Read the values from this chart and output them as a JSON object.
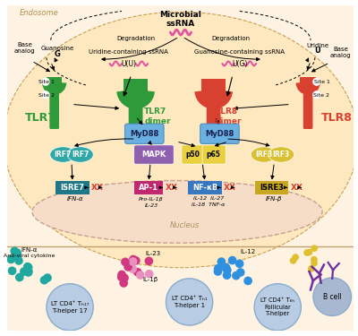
{
  "bg_outer": "#fef3e2",
  "bg_endosome": "#fde8c0",
  "bg_nucleus": "#f5ddc8",
  "colors": {
    "green": "#2e9a3a",
    "red": "#d84030",
    "pink_rna": "#e055a0",
    "teal_irf7": "#30a8a8",
    "purple_mapk": "#9060b0",
    "yellow_p50p65": "#e8d040",
    "yellow_irf3": "#d8c030",
    "blue_nfkb": "#3878c0",
    "pink_ap1": "#c02870",
    "teal_isre7": "#1e7888",
    "yellow_isre3": "#c8a820",
    "myd88": "#6ab0e0",
    "arrow": "#222222",
    "teal_dots": "#20a8a0",
    "pink_dots_dark": "#d03880",
    "pink_dots_light": "#e890c0",
    "blue_dots": "#3090e0",
    "yellow_dots": "#e0c030",
    "purple_ab": "#7030a0",
    "cell_fill": "#b8cce4",
    "cell_edge": "#8aabcc",
    "b_cell_fill": "#a8b8d0"
  },
  "texts": {
    "endosome": "Endosome",
    "microbial": "Microbial",
    "ssrna": "ssRNA",
    "degradation_left": "Degradation",
    "degradation_right": "Degradation",
    "guanosine": "Guanosine",
    "g": "G",
    "base_analog_l": "Base\nanalog",
    "uridine_ssrna": "Uridine-containing ssRNA",
    "uu": "U(U)",
    "guanosine_ssrna": "Guanosine-containing ssRNA",
    "ug": "U(G)",
    "uridine": "Uridine",
    "u": "U",
    "base_analog_r": "Base\nanalog",
    "site1_l": "Site 1",
    "site2_l": "Site 2",
    "site1_r": "Site 1",
    "site2_r": "Site 2",
    "tlr7": "TLR7",
    "tlr7_dimer": "TLR7\ndimer",
    "tlr8_dimer": "TLR8\ndimer",
    "tlr8": "TLR8",
    "myd88": "MyD88",
    "irf7": "IRF7",
    "irf7b": "IRF7",
    "mapk": "MAPK",
    "p50": "p50",
    "p65": "p65",
    "irf3a": "IRF3",
    "irf3b": "IRF3",
    "isre7": "ISRE7",
    "ap1": "AP-1",
    "nfkb": "NF-κB",
    "isre3": "ISRE3",
    "ifna_italic": "IFN-α",
    "proil1b": "Pro-IL-1β",
    "il23_italic": "IL-23",
    "il12": "IL-12",
    "il27": "IL-27",
    "il18": "IL-18",
    "tnfa": "TNF-α",
    "ifnb_italic": "IFN-β",
    "nucleus": "Nucleus",
    "ifna_label": "IFN-α",
    "antiviral": "Anti-viral cytokine",
    "il23_label": "IL-23",
    "il1b_label": "IL-1β",
    "il12_label": "IL-12",
    "th17_label": "LT CD4⁺ Tₕ₁₇\nT-helper 17",
    "th1_label": "LT CD4⁺ Tₕ₁\nT-helper 1",
    "tfh_label": "LT CD4⁺ T₆ₕ\nFollicular\nT-helper",
    "bcell_label": "B cell"
  }
}
